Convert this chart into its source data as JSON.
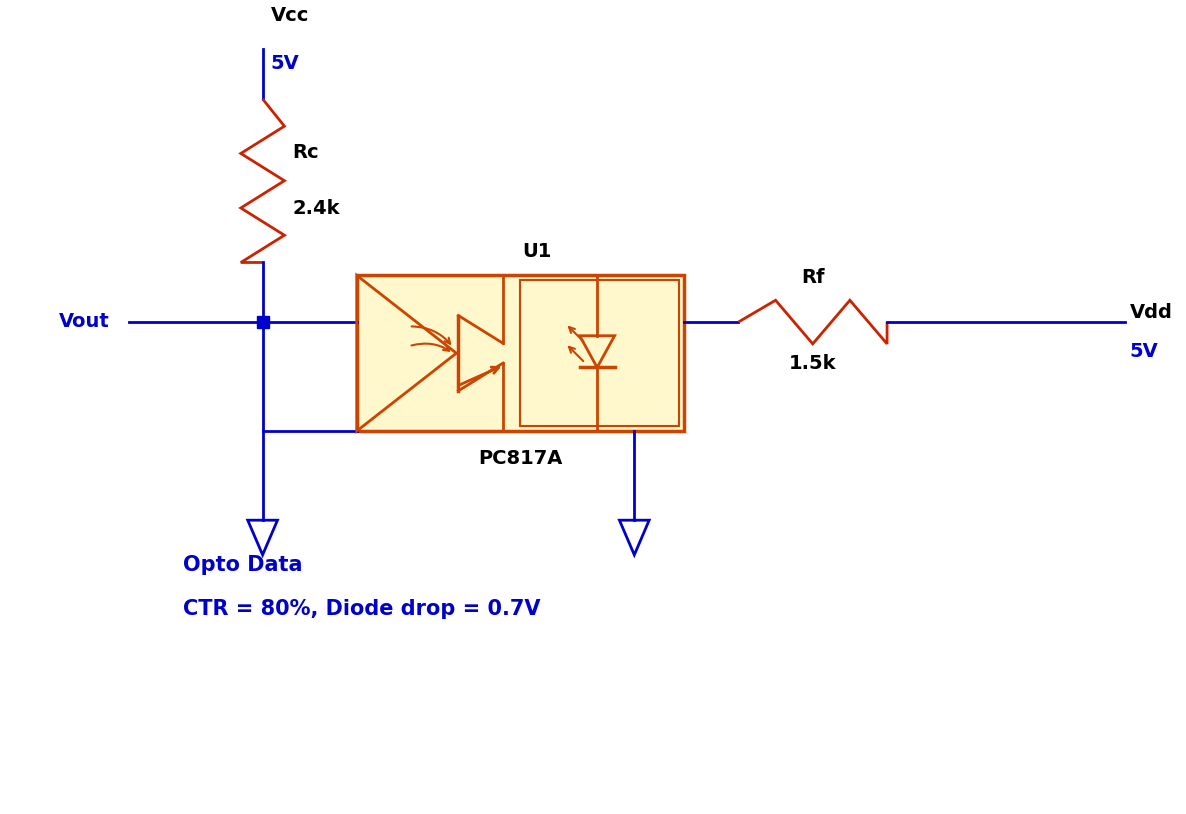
{
  "bg_color": "#ffffff",
  "wire_color": "#0000cc",
  "resistor_color": "#cc2200",
  "ic_fill_color": "#fff8cc",
  "ic_border_color": "#cc4400",
  "text_color_black": "#000000",
  "text_color_blue": "#0000cc",
  "vcc_label": "Vcc",
  "vcc_value": "5V",
  "rc_label": "Rc",
  "rc_value": "2.4k",
  "vout_label": "Vout",
  "u1_label": "U1",
  "pc817a_label": "PC817A",
  "rf_label": "Rf",
  "rf_value": "1.5k",
  "vdd_label": "Vdd",
  "vdd_value": "5V",
  "opto_line1": "Opto Data",
  "opto_line2": "CTR = 80%, Diode drop = 0.7V"
}
